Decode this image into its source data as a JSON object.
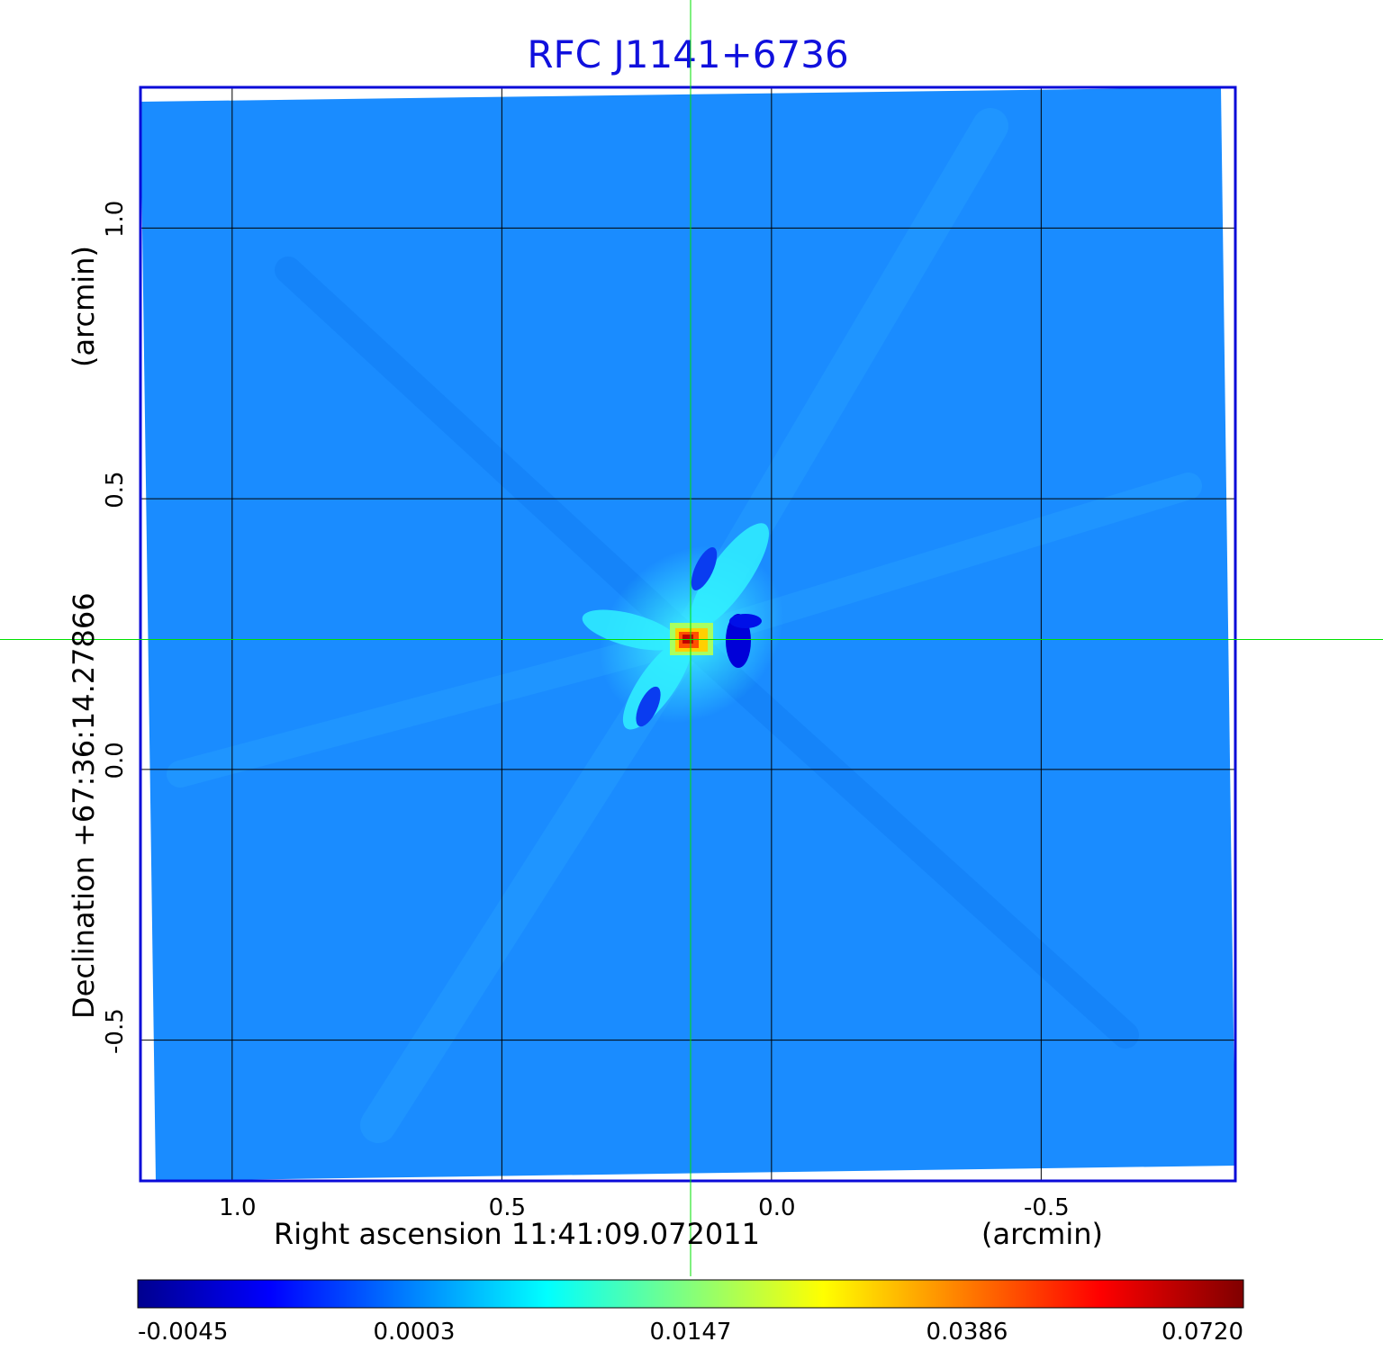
{
  "chart_data": {
    "type": "heatmap",
    "title": "RFC J1141+6736",
    "xlabel": "Right ascension  11:41:09.072011",
    "xunit": "(arcmin)",
    "ylabel": "Declination  +67:36:14.27866",
    "yunit": "(arcmin)",
    "x_ticks": [
      1.0,
      0.5,
      0.0,
      -0.5
    ],
    "x_tick_labels": [
      "1.0",
      "0.5",
      "0.0",
      "-0.5"
    ],
    "y_ticks": [
      1.0,
      0.5,
      0.0,
      -0.5
    ],
    "y_tick_labels": [
      "1.0",
      "0.5",
      "0.0",
      "-0.5"
    ],
    "xlim": [
      1.17,
      -0.86
    ],
    "ylim": [
      -0.76,
      1.26
    ],
    "grid": true,
    "crosshair": {
      "x": 0.15,
      "y": 0.24
    },
    "peak": {
      "x": 0.16,
      "y": 0.24,
      "value": 0.072
    },
    "colorbar": {
      "tick_labels": [
        "-0.0045",
        "0.0003",
        "0.0147",
        "0.0386",
        "0.0720"
      ],
      "colormap": "jet"
    },
    "colors": {
      "background_map": "#1a8cff",
      "frame": "#0a0ad8",
      "crosshair": "#00e000",
      "grid": "#000000"
    }
  }
}
